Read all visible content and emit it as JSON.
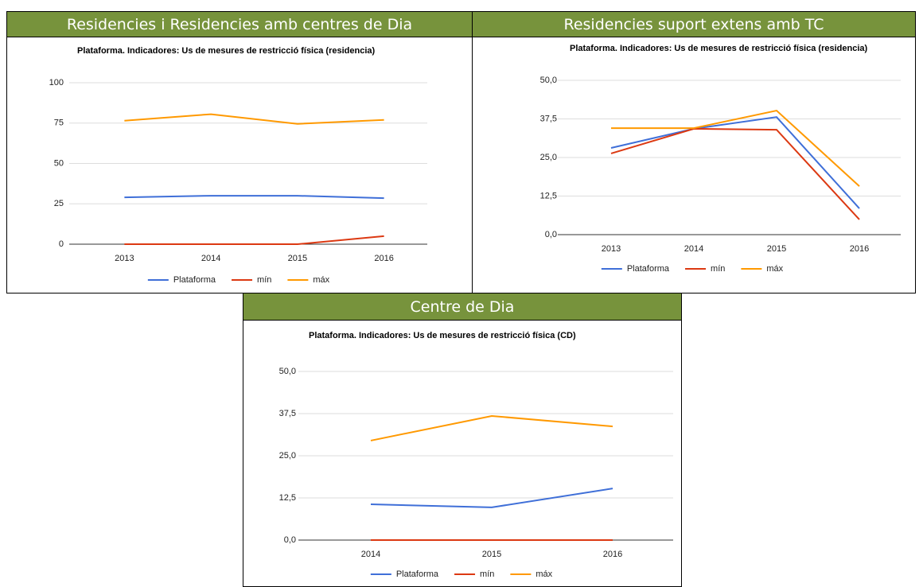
{
  "headers": [
    "Residencies i Residencies amb centres de Dia",
    "Residencies suport extens amb TC",
    "Centre de Dia"
  ],
  "chart_data": [
    {
      "type": "line",
      "title": "Plataforma. Indicadores: Us de mesures de restricció física (residencia)",
      "categories": [
        "2013",
        "2014",
        "2015",
        "2016"
      ],
      "series": [
        {
          "name": "Plataforma",
          "color": "#3f6fd8",
          "values": [
            29,
            30,
            30,
            28.5
          ]
        },
        {
          "name": "mín",
          "color": "#dc3912",
          "values": [
            0,
            0,
            0,
            5
          ]
        },
        {
          "name": "máx",
          "color": "#ff9900",
          "values": [
            76.5,
            80.5,
            74.5,
            77
          ]
        }
      ],
      "ylim": [
        0,
        100
      ],
      "yticks": [
        0,
        25,
        50,
        75,
        100
      ],
      "grid": true,
      "legend": "bottom"
    },
    {
      "type": "line",
      "title": "Plataforma. Indicadores: Us de mesures de restricció física (residencia)",
      "categories": [
        "2013",
        "2014",
        "2015",
        "2016"
      ],
      "series": [
        {
          "name": "Plataforma",
          "color": "#3f6fd8",
          "values": [
            28.1,
            34.3,
            38.1,
            8.5
          ]
        },
        {
          "name": "mín",
          "color": "#dc3912",
          "values": [
            26.3,
            34.3,
            34,
            4.9
          ]
        },
        {
          "name": "máx",
          "color": "#ff9900",
          "values": [
            34.5,
            34.5,
            40.2,
            15.7
          ]
        }
      ],
      "ylim": [
        0,
        50
      ],
      "yticks": [
        {
          "value": 0,
          "label": "0,0"
        },
        {
          "value": 12.5,
          "label": "12,5"
        },
        {
          "value": 25,
          "label": "25,0"
        },
        {
          "value": 37.5,
          "label": "37,5"
        },
        {
          "value": 50,
          "label": "50,0"
        }
      ],
      "grid": true,
      "legend": "bottom"
    },
    {
      "type": "line",
      "title": "Plataforma. Indicadores: Us de mesures de restricció física (CD)",
      "categories": [
        "2014",
        "2015",
        "2016"
      ],
      "series": [
        {
          "name": "Plataforma",
          "color": "#3f6fd8",
          "values": [
            10.6,
            9.7,
            15.3
          ]
        },
        {
          "name": "mín",
          "color": "#dc3912",
          "values": [
            0,
            0,
            0
          ]
        },
        {
          "name": "máx",
          "color": "#ff9900",
          "values": [
            29.5,
            36.8,
            33.7
          ]
        }
      ],
      "ylim": [
        0,
        50
      ],
      "yticks": [
        {
          "value": 0,
          "label": "0,0"
        },
        {
          "value": 12.5,
          "label": "12,5"
        },
        {
          "value": 25,
          "label": "25,0"
        },
        {
          "value": 37.5,
          "label": "37,5"
        },
        {
          "value": 50,
          "label": "50,0"
        }
      ],
      "grid": true,
      "legend": "bottom"
    }
  ]
}
